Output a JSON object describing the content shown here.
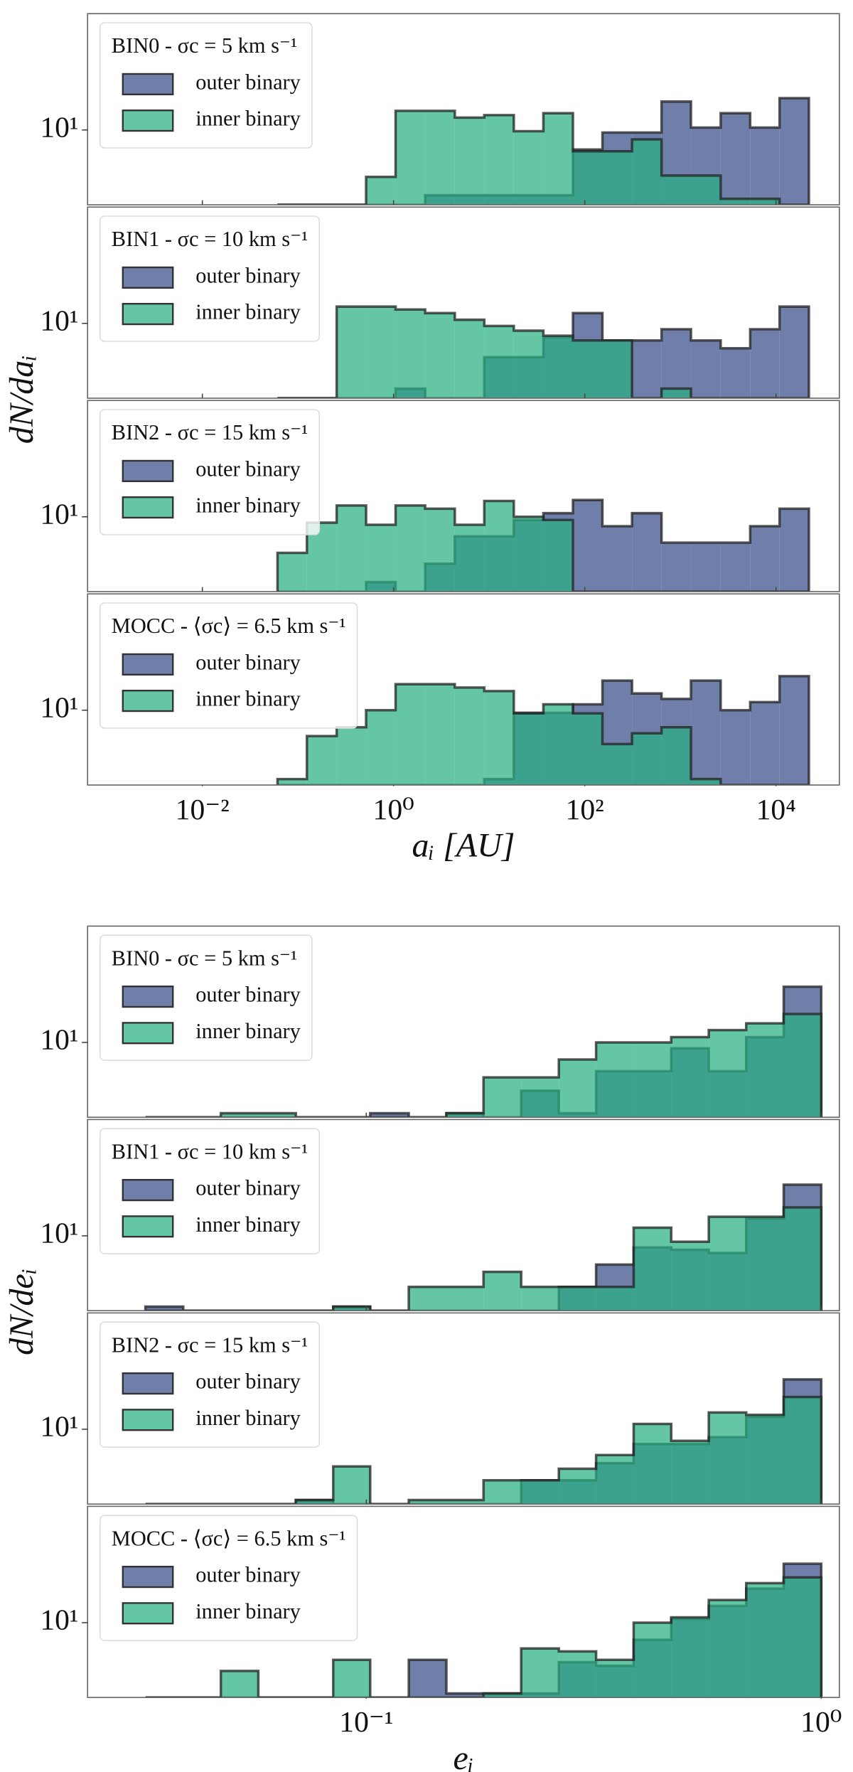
{
  "chart_data": [
    {
      "type": "histogram",
      "xlabel": "aᵢ [AU]",
      "ylabel": "dN/daᵢ",
      "xscale": "log",
      "yscale": "log",
      "xlim": [
        0.00063,
        46000
      ],
      "xticks": [
        {
          "value": 0.01,
          "label": "10⁻²"
        },
        {
          "value": 1,
          "label": "10⁰"
        },
        {
          "value": 100,
          "label": "10²"
        },
        {
          "value": 10000,
          "label": "10⁴"
        }
      ],
      "bins": [
        0.0611,
        0.124,
        0.254,
        0.516,
        1.05,
        2.14,
        4.37,
        8.89,
        18.1,
        36.9,
        75.2,
        153,
        312,
        635,
        1290,
        2640,
        5370,
        10900,
        22100
      ],
      "panels": [
        {
          "legend_title": "BIN0 - σc = 5 km s⁻¹",
          "ylim": [
            3,
            65
          ],
          "yticks": [
            {
              "value": 10,
              "label": "10¹"
            }
          ],
          "series": [
            {
              "name": "outer binary",
              "color": "#6f7fa9",
              "values": [
                0,
                0,
                0,
                0,
                0,
                3.5,
                3.5,
                3.5,
                3.5,
                3.5,
                7.3,
                9.6,
                9.6,
                15.8,
                10.4,
                13.1,
                10.4,
                16.7
              ]
            },
            {
              "name": "inner binary",
              "color": "#2ab082",
              "values": [
                0,
                0,
                0,
                4.7,
                13.6,
                13.6,
                12.2,
                12.7,
                9.8,
                13.1,
                7.1,
                7.1,
                8.6,
                4.8,
                4.8,
                3.3,
                3.3,
                0
              ]
            }
          ]
        },
        {
          "legend_title": "BIN1 - σc = 10 km s⁻¹",
          "ylim": [
            3,
            65
          ],
          "yticks": [
            {
              "value": 10,
              "label": "10¹"
            }
          ],
          "series": [
            {
              "name": "outer binary",
              "color": "#6f7fa9",
              "values": [
                0,
                0,
                0,
                0,
                3.5,
                0,
                0,
                5.8,
                5.8,
                8.0,
                11.8,
                7.6,
                7.6,
                9.1,
                7.6,
                6.7,
                9.1,
                13.1
              ]
            },
            {
              "name": "inner binary",
              "color": "#2ab082",
              "values": [
                0,
                0,
                13.1,
                13.1,
                12.5,
                11.8,
                10.6,
                9.6,
                8.9,
                8.2,
                7.6,
                7.6,
                0,
                3.5,
                0,
                0,
                0,
                0
              ]
            }
          ]
        },
        {
          "legend_title": "BIN2 - σc = 15 km s⁻¹",
          "ylim": [
            3,
            65
          ],
          "yticks": [
            {
              "value": 10,
              "label": "10¹"
            }
          ],
          "series": [
            {
              "name": "outer binary",
              "color": "#6f7fa9",
              "values": [
                0,
                0,
                0,
                3.5,
                0,
                4.7,
                7.3,
                7.3,
                9.5,
                10.6,
                13.1,
                8.6,
                10.6,
                6.6,
                6.6,
                6.6,
                8.6,
                11.4
              ]
            },
            {
              "name": "inner binary",
              "color": "#2ab082",
              "values": [
                5.6,
                9.1,
                12.0,
                8.8,
                12.0,
                11.4,
                8.8,
                12.9,
                10.0,
                9.5,
                0,
                0,
                0,
                0,
                0,
                0,
                0,
                0
              ]
            }
          ]
        },
        {
          "legend_title": "MOCC - ⟨σc⟩ = 6.5 km s⁻¹",
          "ylim": [
            3,
            65
          ],
          "yticks": [
            {
              "value": 10,
              "label": "10¹"
            }
          ],
          "series": [
            {
              "name": "outer binary",
              "color": "#6f7fa9",
              "values": [
                0,
                0,
                0,
                0,
                0,
                0,
                0,
                3.3,
                9.6,
                9.6,
                11.0,
                16.1,
                13.1,
                12.0,
                16.1,
                10,
                11.4,
                17.3
              ]
            },
            {
              "name": "inner binary",
              "color": "#2ab082",
              "values": [
                3.3,
                6.6,
                7.6,
                10,
                15.2,
                15.2,
                14.4,
                13.6,
                9.5,
                11.0,
                9.5,
                5.8,
                6.9,
                7.6,
                3.3,
                0,
                0,
                0
              ]
            }
          ]
        }
      ]
    },
    {
      "type": "histogram",
      "xlabel": "eᵢ",
      "ylabel": "dN/deᵢ",
      "xscale": "log",
      "yscale": "log",
      "xlim": [
        0.0244,
        1.096
      ],
      "xticks": [
        {
          "value": 0.1,
          "label": "10⁻¹"
        },
        {
          "value": 1,
          "label": "10⁰"
        }
      ],
      "bins": [
        0.0327,
        0.0396,
        0.0479,
        0.0579,
        0.07,
        0.0846,
        0.102,
        0.124,
        0.15,
        0.181,
        0.219,
        0.265,
        0.32,
        0.387,
        0.468,
        0.566,
        0.684,
        0.827,
        1
      ],
      "panels": [
        {
          "legend_title": "BIN0 - σc = 5 km s⁻¹",
          "ylim": [
            3,
            65
          ],
          "yticks": [
            {
              "value": 10,
              "label": "10¹"
            }
          ],
          "series": [
            {
              "name": "outer binary",
              "color": "#6f7fa9",
              "values": [
                0,
                0,
                0,
                0,
                0,
                0,
                3.2,
                0,
                3.2,
                0,
                4.6,
                3.2,
                6.3,
                6.3,
                9.1,
                6.3,
                10.9,
                24.5
              ]
            },
            {
              "name": "inner binary",
              "color": "#2ab082",
              "values": [
                0,
                0,
                3.2,
                3.2,
                0,
                0,
                0,
                0,
                3.2,
                5.7,
                5.7,
                7.6,
                10,
                10,
                10.9,
                12.2,
                13.6,
                15.8
              ]
            }
          ]
        },
        {
          "legend_title": "BIN1 - σc = 10 km s⁻¹",
          "ylim": [
            3,
            65
          ],
          "yticks": [
            {
              "value": 10,
              "label": "10¹"
            }
          ],
          "series": [
            {
              "name": "outer binary",
              "color": "#6f7fa9",
              "values": [
                3.2,
                0,
                0,
                0,
                0,
                3.2,
                0,
                0,
                0,
                0,
                0,
                4.4,
                6.3,
                8.3,
                8.0,
                7.6,
                13.2,
                22.8
              ]
            },
            {
              "name": "inner binary",
              "color": "#2ab082",
              "values": [
                0,
                0,
                0,
                0,
                0,
                3.2,
                0,
                4.4,
                4.4,
                5.6,
                4.4,
                4.4,
                4.4,
                11.4,
                9.1,
                13.6,
                13.6,
                15.8
              ]
            }
          ]
        },
        {
          "legend_title": "BIN2 - σc = 15 km s⁻¹",
          "ylim": [
            3,
            65
          ],
          "yticks": [
            {
              "value": 10,
              "label": "10¹"
            }
          ],
          "series": [
            {
              "name": "outer binary",
              "color": "#6f7fa9",
              "values": [
                0,
                0,
                0,
                0,
                3.2,
                0,
                0,
                0,
                0,
                0,
                4.4,
                4.4,
                5.8,
                7.9,
                7.9,
                8.8,
                12.2,
                22.3
              ]
            },
            {
              "name": "inner binary",
              "color": "#2ab082",
              "values": [
                0,
                0,
                0,
                0,
                3.2,
                5.5,
                0,
                3.2,
                3.2,
                4.4,
                4.4,
                5.3,
                6.6,
                10.9,
                8.3,
                13.1,
                12.6,
                16.8
              ]
            }
          ]
        },
        {
          "legend_title": "MOCC - ⟨σc⟩ = 6.5 km s⁻¹",
          "ylim": [
            3,
            65
          ],
          "yticks": [
            {
              "value": 10,
              "label": "10¹"
            }
          ],
          "series": [
            {
              "name": "outer binary",
              "color": "#6f7fa9",
              "values": [
                0,
                0,
                0,
                0,
                0,
                0,
                0,
                5.5,
                3.2,
                3.2,
                3.2,
                5.3,
                5.0,
                7.6,
                10.6,
                13.1,
                17.3,
                25.8
              ]
            },
            {
              "name": "inner binary",
              "color": "#2ab082",
              "values": [
                0,
                0,
                4.6,
                0,
                0,
                5.5,
                0,
                0,
                0,
                3.2,
                6.6,
                6.3,
                5.5,
                10,
                10.9,
                14.4,
                18.9,
                20.7
              ]
            }
          ]
        }
      ]
    }
  ]
}
